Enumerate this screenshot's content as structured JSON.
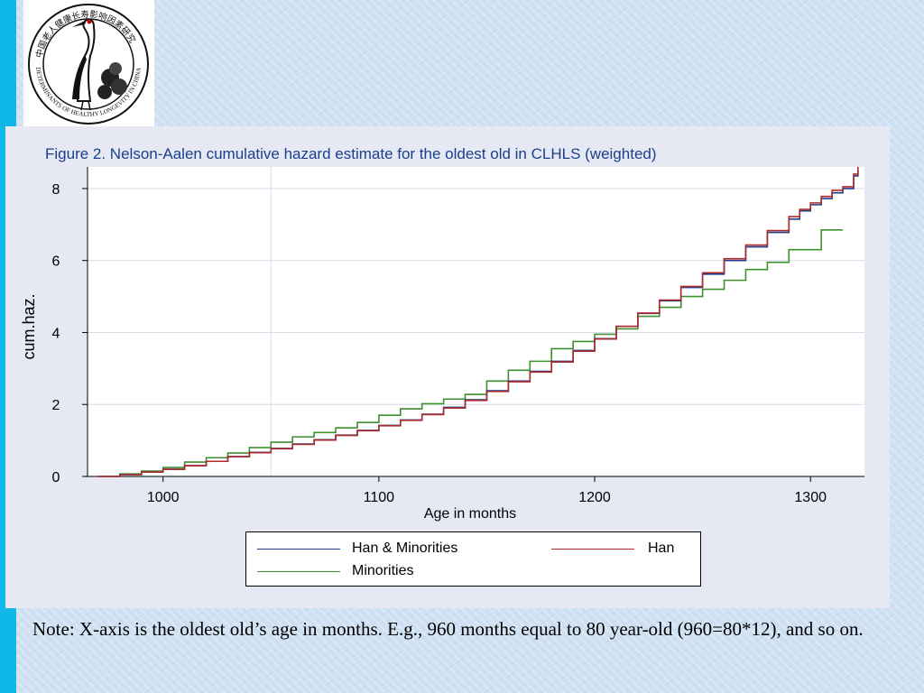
{
  "logo": {
    "name": "crane-logo",
    "text_top": "中国老人健康长寿影响因素研究",
    "text_bottom": "DETERMINANTS OF HEALTHY LONGEVITY IN CHINA"
  },
  "figure_title": "Figure 2. Nelson-Aalen cumulative hazard estimate for the oldest old in CLHLS (weighted)",
  "note": "Note: X-axis is the oldest old’s age in months. E.g., 960 months equal to 80 year-old (960=80*12), and so on.",
  "legend": {
    "items": [
      {
        "label": "Han & Minorities",
        "color": "#1f3b8c"
      },
      {
        "label": "Han",
        "color": "#b02a2a"
      },
      {
        "label": "Minorities",
        "color": "#3e8f2e"
      }
    ]
  },
  "chart_data": {
    "type": "line",
    "title": "Figure 2. Nelson-Aalen cumulative hazard estimate for the oldest old in CLHLS (weighted)",
    "xlabel": "Age in months",
    "ylabel": "cum.haz.",
    "xlim": [
      965,
      1325
    ],
    "ylim": [
      0,
      8.6
    ],
    "xticks": [
      1000,
      1100,
      1200,
      1300
    ],
    "yticks": [
      0,
      2,
      4,
      6,
      8
    ],
    "grid": true,
    "legend_position": "bottom",
    "series": [
      {
        "name": "Han & Minorities",
        "color": "#1f3b8c",
        "x": [
          970,
          980,
          990,
          1000,
          1010,
          1020,
          1030,
          1040,
          1050,
          1060,
          1070,
          1080,
          1090,
          1100,
          1110,
          1120,
          1130,
          1140,
          1150,
          1160,
          1170,
          1180,
          1190,
          1200,
          1210,
          1220,
          1230,
          1240,
          1250,
          1260,
          1270,
          1280,
          1290,
          1295,
          1300,
          1305,
          1310,
          1315,
          1320,
          1322
        ],
        "y": [
          0,
          0.05,
          0.12,
          0.2,
          0.3,
          0.42,
          0.55,
          0.67,
          0.78,
          0.9,
          1.02,
          1.15,
          1.28,
          1.42,
          1.57,
          1.73,
          1.92,
          2.13,
          2.38,
          2.65,
          2.92,
          3.2,
          3.5,
          3.83,
          4.17,
          4.53,
          4.88,
          5.25,
          5.62,
          6.0,
          6.38,
          6.78,
          7.15,
          7.38,
          7.55,
          7.72,
          7.88,
          8.0,
          8.35,
          8.5
        ]
      },
      {
        "name": "Han",
        "color": "#b02a2a",
        "x": [
          970,
          980,
          990,
          1000,
          1010,
          1020,
          1030,
          1040,
          1050,
          1060,
          1070,
          1080,
          1090,
          1100,
          1110,
          1120,
          1130,
          1140,
          1150,
          1160,
          1170,
          1180,
          1190,
          1200,
          1210,
          1220,
          1230,
          1240,
          1250,
          1260,
          1270,
          1280,
          1290,
          1295,
          1300,
          1305,
          1310,
          1315,
          1320,
          1322
        ],
        "y": [
          0,
          0.05,
          0.12,
          0.2,
          0.3,
          0.42,
          0.55,
          0.66,
          0.77,
          0.89,
          1.01,
          1.14,
          1.27,
          1.41,
          1.56,
          1.72,
          1.9,
          2.11,
          2.36,
          2.63,
          2.9,
          3.18,
          3.48,
          3.82,
          4.17,
          4.54,
          4.9,
          5.28,
          5.66,
          6.05,
          6.43,
          6.83,
          7.22,
          7.42,
          7.6,
          7.78,
          7.95,
          8.05,
          8.4,
          8.6
        ]
      },
      {
        "name": "Minorities",
        "color": "#3e8f2e",
        "x": [
          970,
          980,
          990,
          1000,
          1010,
          1020,
          1030,
          1040,
          1050,
          1060,
          1070,
          1080,
          1090,
          1100,
          1110,
          1120,
          1130,
          1140,
          1150,
          1160,
          1170,
          1180,
          1190,
          1200,
          1210,
          1220,
          1230,
          1240,
          1250,
          1260,
          1270,
          1280,
          1290,
          1300,
          1305,
          1310,
          1315
        ],
        "y": [
          0,
          0.07,
          0.15,
          0.25,
          0.4,
          0.52,
          0.65,
          0.8,
          0.95,
          1.1,
          1.22,
          1.35,
          1.5,
          1.7,
          1.88,
          2.02,
          2.15,
          2.28,
          2.65,
          2.95,
          3.2,
          3.55,
          3.75,
          3.95,
          4.1,
          4.45,
          4.7,
          5.0,
          5.2,
          5.45,
          5.75,
          5.95,
          6.3,
          6.3,
          6.85,
          6.85,
          6.85
        ]
      }
    ]
  }
}
